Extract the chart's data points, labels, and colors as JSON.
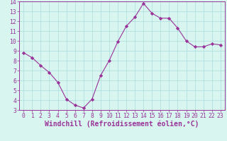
{
  "x": [
    0,
    1,
    2,
    3,
    4,
    5,
    6,
    7,
    8,
    9,
    10,
    11,
    12,
    13,
    14,
    15,
    16,
    17,
    18,
    19,
    20,
    21,
    22,
    23
  ],
  "y": [
    8.8,
    8.3,
    7.5,
    6.8,
    5.8,
    4.1,
    3.5,
    3.2,
    4.1,
    6.5,
    8.0,
    9.9,
    11.5,
    12.4,
    13.8,
    12.8,
    12.3,
    12.3,
    11.3,
    10.0,
    9.4,
    9.4,
    9.7,
    9.6
  ],
  "line_color": "#993399",
  "marker": "D",
  "marker_size": 2.2,
  "bg_color": "#d8f5f0",
  "grid_color": "#aadddd",
  "xlabel": "Windchill (Refroidissement éolien,°C)",
  "xlim": [
    -0.5,
    23.5
  ],
  "ylim": [
    3,
    14
  ],
  "yticks": [
    3,
    4,
    5,
    6,
    7,
    8,
    9,
    10,
    11,
    12,
    13,
    14
  ],
  "xticks": [
    0,
    1,
    2,
    3,
    4,
    5,
    6,
    7,
    8,
    9,
    10,
    11,
    12,
    13,
    14,
    15,
    16,
    17,
    18,
    19,
    20,
    21,
    22,
    23
  ],
  "tick_color": "#993399",
  "tick_labelsize": 5.8,
  "xlabel_fontsize": 7.0,
  "xlabel_color": "#993399",
  "spine_color": "#993399",
  "linewidth": 0.8
}
